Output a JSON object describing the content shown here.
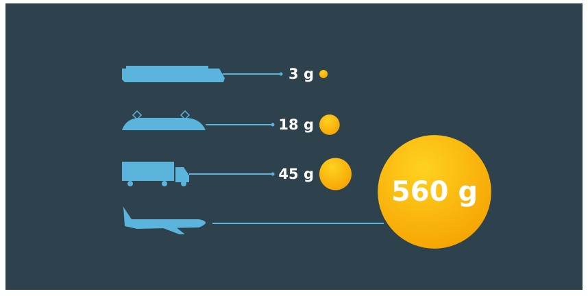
{
  "chart_data": {
    "type": "bubble",
    "categories": [
      null,
      null,
      null,
      null
    ],
    "values": [
      3,
      18,
      45,
      560
    ],
    "value_labels": [
      "3 g",
      "18 g",
      "45 g",
      "560 g"
    ],
    "color": "#f7b500"
  }
}
